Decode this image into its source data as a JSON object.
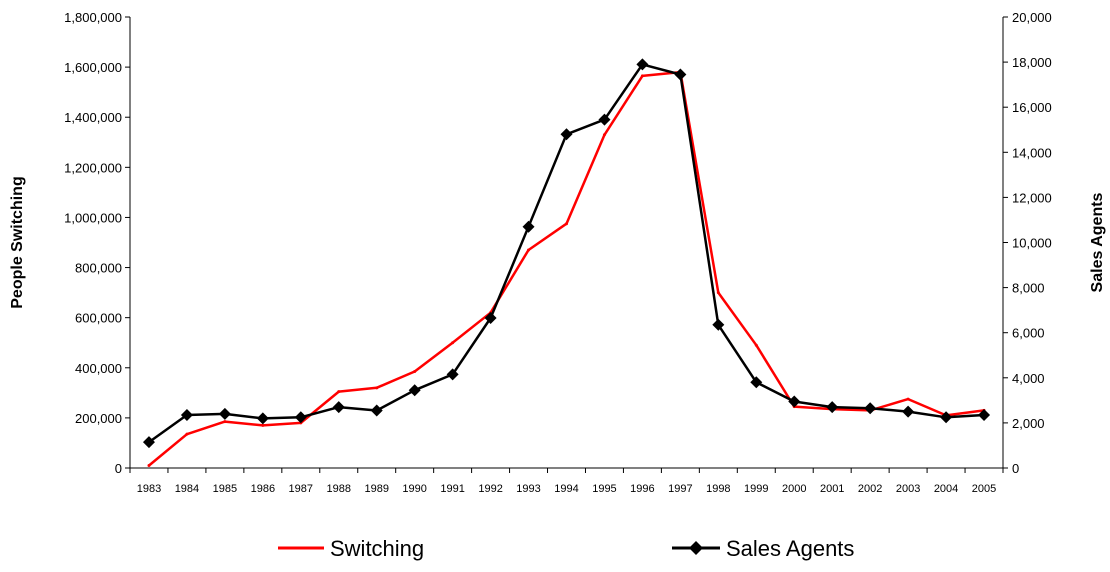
{
  "chart_data": {
    "type": "line",
    "x": [
      "1983",
      "1984",
      "1985",
      "1986",
      "1987",
      "1988",
      "1989",
      "1990",
      "1991",
      "1992",
      "1993",
      "1994",
      "1995",
      "1996",
      "1997",
      "1998",
      "1999",
      "2000",
      "2001",
      "2002",
      "2003",
      "2004",
      "2005"
    ],
    "y_left": {
      "label": "People Switching",
      "ylim": [
        0,
        1800000
      ],
      "ticks": [
        "0",
        "200,000",
        "400,000",
        "600,000",
        "800,000",
        "1,000,000",
        "1,200,000",
        "1,400,000",
        "1,600,000",
        "1,800,000"
      ]
    },
    "y_right": {
      "label": "Sales Agents",
      "ylim": [
        0,
        20000
      ],
      "ticks": [
        "0",
        "2,000",
        "4,000",
        "6,000",
        "8,000",
        "10,000",
        "12,000",
        "14,000",
        "16,000",
        "18,000",
        "20,000"
      ]
    },
    "series": [
      {
        "name": "Switching",
        "axis": "left",
        "color": "#ff0000",
        "marker": "none",
        "values": [
          10000,
          135000,
          185000,
          170000,
          180000,
          305000,
          320000,
          385000,
          500000,
          620000,
          870000,
          975000,
          1330000,
          1565000,
          1580000,
          700000,
          490000,
          245000,
          235000,
          230000,
          275000,
          210000,
          230000
        ]
      },
      {
        "name": "Sales Agents",
        "axis": "right",
        "color": "#000000",
        "marker": "diamond",
        "values": [
          1150,
          2350,
          2400,
          2200,
          2250,
          2700,
          2550,
          3450,
          4150,
          6650,
          10700,
          14800,
          15450,
          17900,
          17450,
          6350,
          3800,
          2950,
          2700,
          2650,
          2500,
          2250,
          2350
        ]
      }
    ],
    "grid": false,
    "legend": "bottom"
  },
  "legend": {
    "items": [
      "Switching",
      "Sales Agents"
    ]
  }
}
